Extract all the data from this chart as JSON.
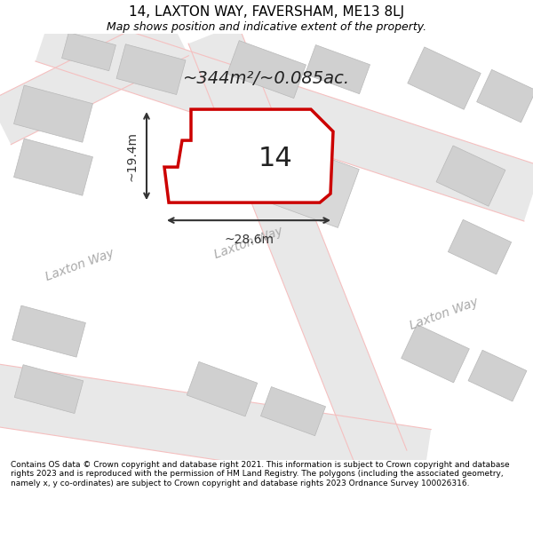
{
  "title": "14, LAXTON WAY, FAVERSHAM, ME13 8LJ",
  "subtitle": "Map shows position and indicative extent of the property.",
  "footer": "Contains OS data © Crown copyright and database right 2021. This information is subject to Crown copyright and database rights 2023 and is reproduced with the permission of HM Land Registry. The polygons (including the associated geometry, namely x, y co-ordinates) are subject to Crown copyright and database rights 2023 Ordnance Survey 100026316.",
  "area_label": "~344m²/~0.085ac.",
  "number_label": "14",
  "dim_h_label": "~28.6m",
  "dim_v_label": "~19.4m",
  "background_color": "#ffffff",
  "map_bg": "#ffffff",
  "road_color": "#e8e8e8",
  "building_color": "#d8d8d8",
  "road_line_color": "#f0b0b0",
  "highlight_color": "#cc0000",
  "dim_color": "#333333",
  "street_label_color": "#aaaaaa",
  "title_color": "#000000",
  "footer_color": "#000000"
}
